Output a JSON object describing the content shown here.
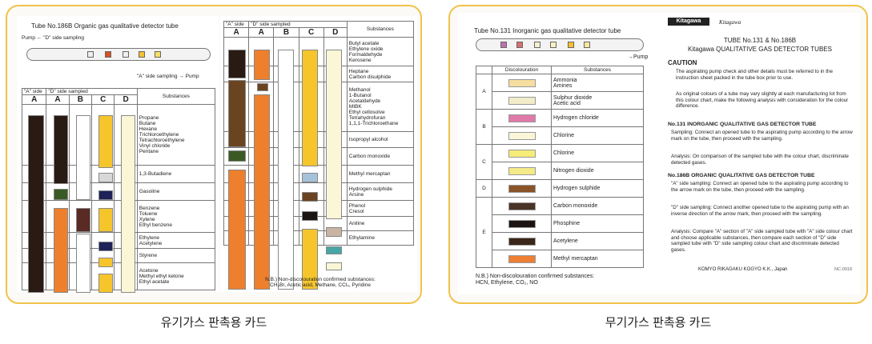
{
  "organic": {
    "tube_title": "Tube No.186B Organic gas qualitative detector tube",
    "pump_label": "Pump ← \"D\" side sampling",
    "a_sampling_label": "\"A\" side sampling → Pump",
    "left_table": {
      "a_side": "\"A\" side",
      "d_side": "\"D\" side sampled",
      "cols": [
        "A",
        "A",
        "B",
        "C",
        "D"
      ],
      "substances_header": "Substances",
      "rows": [
        {
          "text": "Propane\nButane\nHexane\nTrichloroethylene\nTetrachloroethylene\nVinyl chloride\nPentane"
        },
        {
          "text": "1,3-Butadiene"
        },
        {
          "text": "Gasoline"
        },
        {
          "text": "Benzene\nToluene\nXylene\nEthyl benzene"
        },
        {
          "text": "Ethylene\nAcetylene"
        },
        {
          "text": "Styrene"
        },
        {
          "text": "Acetone\nMethyl ethyl ketone\nEthyl acetate"
        }
      ]
    },
    "right_table": {
      "a_side": "\"A\" side",
      "d_side": "\"D\" side sampled",
      "cols": [
        "A",
        "A",
        "B",
        "C",
        "D"
      ],
      "substances_header": "Substances",
      "rows": [
        {
          "text": "Butyl acetate\nEthylene oxide\nFormaldehyde\nKerosene"
        },
        {
          "text": "Heptane\nCarbon disulphide"
        },
        {
          "text": "Methanol\n1-Butanol\nAcetaldehyde\nMIBK\nEthyl cellosolve\nTetrahydrofuran\n1,1,1-Trichloroethane"
        },
        {
          "text": "Isopropyl alcohol"
        },
        {
          "text": "Carbon monoxide"
        },
        {
          "text": "Methyl mercaptan"
        },
        {
          "text": "Hydrogen sulphide\nArsine"
        },
        {
          "text": "Phenol\nCresol"
        },
        {
          "text": "Aniline"
        },
        {
          "text": "Ethylamine"
        }
      ]
    },
    "note": "N.B.) Non-discolouration confirmed substances:\nCH₃Br, Acetic acid, Methane, CCl₄, Pyridine",
    "caption": "유기가스 판촉용 카드"
  },
  "inorganic": {
    "tube_title": "Tube No.131 Inorganic gas qualitative detector tube",
    "pump_label": "→Pump",
    "table": {
      "col1": "Discolouration",
      "col2": "Substances",
      "groups": [
        {
          "label": "A",
          "items": [
            {
              "name": "Ammonia\nAmines",
              "color": "#f6dea0"
            },
            {
              "name": "Sulphur dioxide\nAcetic acid",
              "color": "#f2ecc8"
            }
          ]
        },
        {
          "label": "B",
          "items": [
            {
              "name": "Hydrogen chloride",
              "color": "#e07aa8"
            },
            {
              "name": "Chlorine",
              "color": "#fbf6d8"
            }
          ]
        },
        {
          "label": "C",
          "items": [
            {
              "name": "Chlorine",
              "color": "#f6ec78"
            },
            {
              "name": "Nitrogen dioxide",
              "color": "#f4ea88"
            }
          ]
        },
        {
          "label": "D",
          "items": [
            {
              "name": "Hydrogen sulphide",
              "color": "#8a5428"
            }
          ]
        },
        {
          "label": "E",
          "items": [
            {
              "name": "Carbon monoxide",
              "color": "#4a3428"
            },
            {
              "name": "Phosphine",
              "color": "#1c1410"
            },
            {
              "name": "Acetylene",
              "color": "#3a2618"
            },
            {
              "name": "Methyl mercaptan",
              "color": "#ee7f34"
            }
          ]
        }
      ]
    },
    "note": "N.B.) Non-discolouration confirmed substances:\nHCN, Ethylene, CO₂, NO",
    "brand": "Kitagawa",
    "header_title1": "TUBE  No.131 & No.186B",
    "header_title2": "Kitagawa QUALITATIVE GAS DETECTOR TUBES",
    "caution_head": "CAUTION",
    "caution1": "The aspirating pump check and other details must be referred to in the instruction sheet packed in the tube box prior to use.",
    "caution2": "As original colours of a tube may vary slightly at each manufacturing lot from this colour chart, make the following analysis with consideration for the colour difference.",
    "s131_head": "No.131 INORGANIC QUALITATIVE GAS DETECTOR TUBE",
    "s131_sampling": "Sampling: Connect an opened tube to the aspirating pump according to the arrow mark on the tube, then proceed with the sampling.",
    "s131_analysis": "Analysis: On comparison of the sampled tube with the colour chart, discriminate detected gases.",
    "s186_head": "No.186B ORGANIC QUALITATIVE GAS DETECTOR TUBE",
    "s186_a": "\"A\" side sampling: Connect an opened tube to the aspirating pump according to the arrow mark on the tube, then proceed with the sampling.",
    "s186_d": "\"D\" side sampling: Connect another opened tube to the aspirating pump with an inverse direction of the arrow mark, then proceed with the sampling.",
    "s186_analysis": "Analysis: Compare \"A\" section of \"A\" side sampled tube with \"A\" side colour chart and choose applicable substances, then compare each section of \"D\" side sampled tube with \"D\" side sampling colour chart and discriminate detected gases.",
    "company": "KOMYO RIKAGAKU KOGYO K.K., Japan",
    "code": "NC-0918",
    "caption": "무기가스 판촉용 카드"
  },
  "colors": {
    "panel_border": "#f2c24a",
    "dark_brown": "#2a1a14",
    "orange": "#ee7f2c",
    "yellow": "#f6c52c",
    "pale_yellow": "#fbf6d6",
    "navy": "#1e2258",
    "olive_green": "#3a5a24",
    "maroon": "#5a2a24",
    "medium_brown": "#6a4420",
    "light_blue": "#a6c2da",
    "tan": "#c8b4a0",
    "teal": "#48a6a6",
    "grey": "#d8d8d8"
  }
}
